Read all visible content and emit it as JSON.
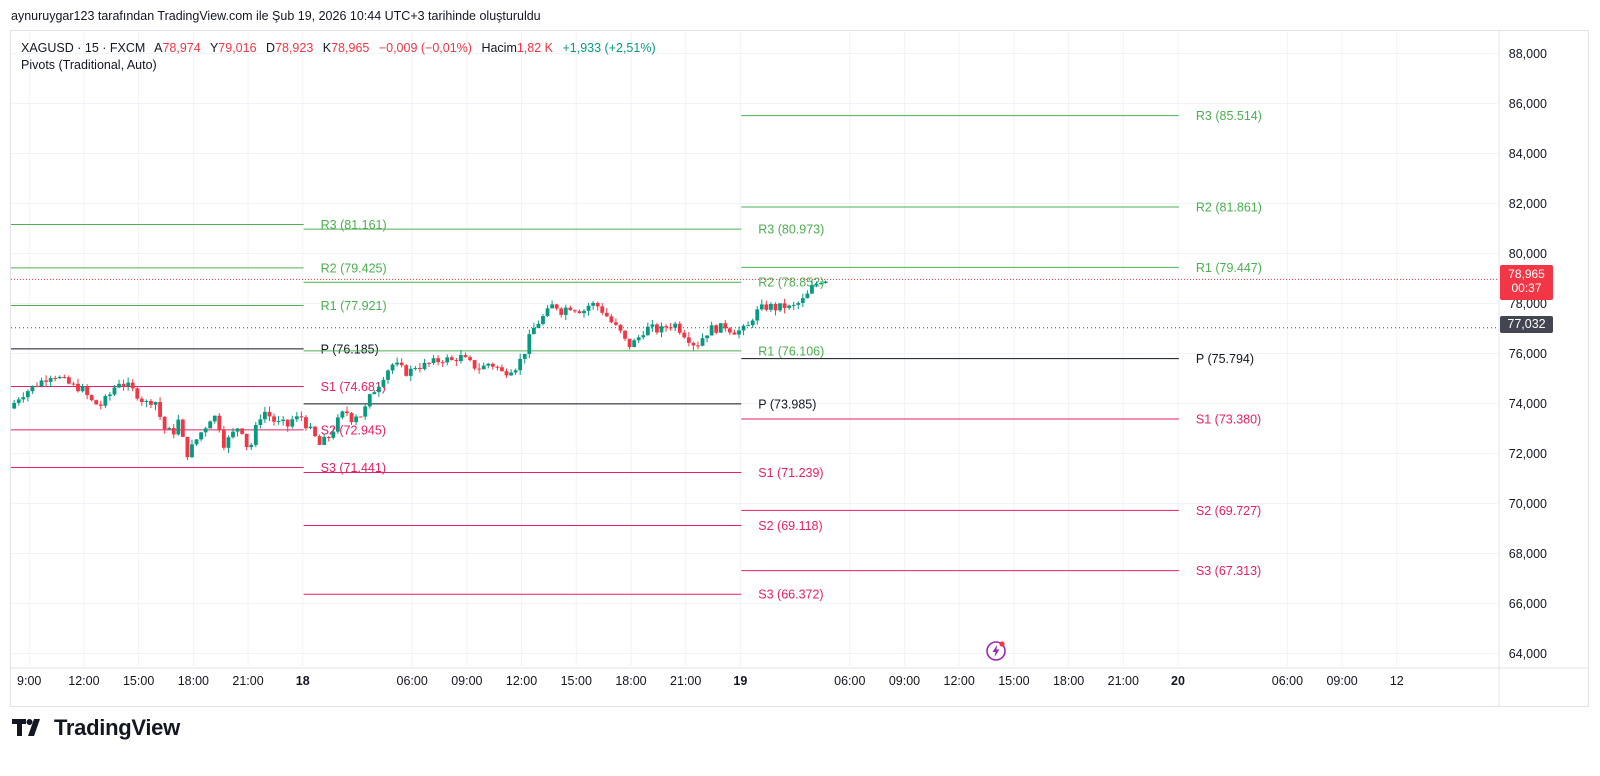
{
  "header": {
    "attribution": "aynuruygar123 tarafından TradingView.com ile Şub 19, 2026 10:44 UTC+3 tarihinde oluşturuldu"
  },
  "legend": {
    "symbol": "XAGUSD · 15 · FXCM",
    "open_label": "A",
    "open_value": "78,974",
    "high_label": "Y",
    "high_value": "79,016",
    "low_label": "D",
    "low_value": "78,923",
    "close_label": "K",
    "close_value": "78,965",
    "change": "−0,009 (−0,01%)",
    "volume_label": "Hacim",
    "volume_value": "1,82 K",
    "volume_change": "+1,933 (+2,51%)",
    "indicator": "Pivots (Traditional, Auto)"
  },
  "price_tags": {
    "last_price": "78,965",
    "countdown": "00:37",
    "crosshair_price": "77,032",
    "partial_tick": "78,000"
  },
  "brand": {
    "name": "TradingView"
  },
  "colors": {
    "up": "#089981",
    "down": "#f23645",
    "resistance": "#4caf50",
    "support": "#e91e63",
    "pivot": "#131722",
    "grid": "#f0f3fa",
    "last": "#f23645",
    "crosshair": "#434651"
  },
  "chart_data": {
    "type": "candlestick",
    "symbol": "XAGUSD",
    "interval": "15",
    "ylim": [
      63.5,
      88.9
    ],
    "y_ticks": [
      "64,000",
      "66,000",
      "68,000",
      "70,000",
      "72,000",
      "74,000",
      "76,000",
      "78,000",
      "80,000",
      "82,000",
      "84,000",
      "86,000",
      "88,000"
    ],
    "y_tick_values": [
      64,
      66,
      68,
      70,
      72,
      74,
      76,
      78,
      80,
      82,
      84,
      86,
      88
    ],
    "x_ticks": [
      {
        "label": "9:00",
        "x": 9
      },
      {
        "label": "12:00",
        "x": 12
      },
      {
        "label": "15:00",
        "x": 15
      },
      {
        "label": "18:00",
        "x": 18
      },
      {
        "label": "21:00",
        "x": 21
      },
      {
        "label": "18",
        "x": 24,
        "bold": true
      },
      {
        "label": "06:00",
        "x": 30
      },
      {
        "label": "09:00",
        "x": 33
      },
      {
        "label": "12:00",
        "x": 36
      },
      {
        "label": "15:00",
        "x": 39
      },
      {
        "label": "18:00",
        "x": 42
      },
      {
        "label": "21:00",
        "x": 45
      },
      {
        "label": "19",
        "x": 48,
        "bold": true
      },
      {
        "label": "06:00",
        "x": 54
      },
      {
        "label": "09:00",
        "x": 57
      },
      {
        "label": "12:00",
        "x": 60
      },
      {
        "label": "15:00",
        "x": 63
      },
      {
        "label": "18:00",
        "x": 66
      },
      {
        "label": "21:00",
        "x": 69
      },
      {
        "label": "20",
        "x": 72,
        "bold": true
      },
      {
        "label": "06:00",
        "x": 78
      },
      {
        "label": "09:00",
        "x": 81
      },
      {
        "label": "12",
        "x": 84
      }
    ],
    "pivot_periods": [
      {
        "x0": 8,
        "x1": 24.05,
        "levels": [
          {
            "name": "R3",
            "value": 81.161,
            "label": "R3 (81.161)",
            "type": "r"
          },
          {
            "name": "R2",
            "value": 79.425,
            "label": "R2 (79.425)",
            "type": "r"
          },
          {
            "name": "R1",
            "value": 77.921,
            "label": "R1 (77.921)",
            "type": "r"
          },
          {
            "name": "P",
            "value": 76.185,
            "label": "P (76.185)",
            "type": "p"
          },
          {
            "name": "S1",
            "value": 74.681,
            "label": "S1 (74.681)",
            "type": "s"
          },
          {
            "name": "S2",
            "value": 72.945,
            "label": "S2 (72.945)",
            "type": "s"
          },
          {
            "name": "S3",
            "value": 71.441,
            "label": "S3 (71.441)",
            "type": "s"
          }
        ]
      },
      {
        "x0": 24.05,
        "x1": 48.05,
        "levels": [
          {
            "name": "R3",
            "value": 80.973,
            "label": "R3 (80.973)",
            "type": "r"
          },
          {
            "name": "R2",
            "value": 78.852,
            "label": "R2 (78.852)",
            "type": "r"
          },
          {
            "name": "R1",
            "value": 76.106,
            "label": "R1 (76.106)",
            "type": "r"
          },
          {
            "name": "P",
            "value": 73.985,
            "label": "P (73.985)",
            "type": "p"
          },
          {
            "name": "S1",
            "value": 71.239,
            "label": "S1 (71.239)",
            "type": "s"
          },
          {
            "name": "S2",
            "value": 69.118,
            "label": "S2 (69.118)",
            "type": "s"
          },
          {
            "name": "S3",
            "value": 66.372,
            "label": "S3 (66.372)",
            "type": "s"
          }
        ]
      },
      {
        "x0": 48.05,
        "x1": 72.05,
        "levels": [
          {
            "name": "R3",
            "value": 85.514,
            "label": "R3 (85.514)",
            "type": "r"
          },
          {
            "name": "R2",
            "value": 81.861,
            "label": "R2 (81.861)",
            "type": "r"
          },
          {
            "name": "R1",
            "value": 79.447,
            "label": "R1 (79.447)",
            "type": "r"
          },
          {
            "name": "P",
            "value": 75.794,
            "label": "P (75.794)",
            "type": "p"
          },
          {
            "name": "S1",
            "value": 73.38,
            "label": "S1 (73.380)",
            "type": "s"
          },
          {
            "name": "S2",
            "value": 69.727,
            "label": "S2 (69.727)",
            "type": "s"
          },
          {
            "name": "S3",
            "value": 67.313,
            "label": "S3 (67.313)",
            "type": "s"
          }
        ]
      }
    ],
    "price_path": [
      [
        8.05,
        73.8
      ],
      [
        8.6,
        74.3
      ],
      [
        9.2,
        74.6
      ],
      [
        9.8,
        74.9
      ],
      [
        10.4,
        75.2
      ],
      [
        11.0,
        74.9
      ],
      [
        11.5,
        74.7
      ],
      [
        12.0,
        74.6
      ],
      [
        12.5,
        74.1
      ],
      [
        13.0,
        73.9
      ],
      [
        13.5,
        74.3
      ],
      [
        14.0,
        74.9
      ],
      [
        14.5,
        74.7
      ],
      [
        15.0,
        74.4
      ],
      [
        15.5,
        74.0
      ],
      [
        16.0,
        74.2
      ],
      [
        16.5,
        73.0
      ],
      [
        17.0,
        72.8
      ],
      [
        17.3,
        73.3
      ],
      [
        17.6,
        72.4
      ],
      [
        17.8,
        72.0
      ],
      [
        18.1,
        72.3
      ],
      [
        18.4,
        72.7
      ],
      [
        18.8,
        73.1
      ],
      [
        19.2,
        73.6
      ],
      [
        19.5,
        73.2
      ],
      [
        19.8,
        72.4
      ],
      [
        20.1,
        72.6
      ],
      [
        20.4,
        72.9
      ],
      [
        20.7,
        73.2
      ],
      [
        21.0,
        72.4
      ],
      [
        21.2,
        72.1
      ],
      [
        21.5,
        72.9
      ],
      [
        21.8,
        73.5
      ],
      [
        22.1,
        73.7
      ],
      [
        22.4,
        73.4
      ],
      [
        22.7,
        73.2
      ],
      [
        23.0,
        73.2
      ],
      [
        23.3,
        73.1
      ],
      [
        23.6,
        73.4
      ],
      [
        23.9,
        73.4
      ],
      [
        24.1,
        73.5
      ],
      [
        24.4,
        73.0
      ],
      [
        24.7,
        72.8
      ],
      [
        25.0,
        72.3
      ],
      [
        25.3,
        72.5
      ],
      [
        25.6,
        72.7
      ],
      [
        25.9,
        73.1
      ],
      [
        26.2,
        73.5
      ],
      [
        26.5,
        73.7
      ],
      [
        26.8,
        73.4
      ],
      [
        27.1,
        73.6
      ],
      [
        27.4,
        73.5
      ],
      [
        27.7,
        74.1
      ],
      [
        28.0,
        74.5
      ],
      [
        28.3,
        74.8
      ],
      [
        28.7,
        75.3
      ],
      [
        29.1,
        75.6
      ],
      [
        29.5,
        75.4
      ],
      [
        29.9,
        75.2
      ],
      [
        30.3,
        75.5
      ],
      [
        30.7,
        75.5
      ],
      [
        31.1,
        75.6
      ],
      [
        31.5,
        75.7
      ],
      [
        31.9,
        75.8
      ],
      [
        32.3,
        75.7
      ],
      [
        32.7,
        75.9
      ],
      [
        33.1,
        75.7
      ],
      [
        33.5,
        75.5
      ],
      [
        33.9,
        75.4
      ],
      [
        34.3,
        75.6
      ],
      [
        34.7,
        75.5
      ],
      [
        35.1,
        75.2
      ],
      [
        35.5,
        75.4
      ],
      [
        35.9,
        75.5
      ],
      [
        36.3,
        76.1
      ],
      [
        36.7,
        76.9
      ],
      [
        37.1,
        77.3
      ],
      [
        37.5,
        77.6
      ],
      [
        37.9,
        78.0
      ],
      [
        38.3,
        77.7
      ],
      [
        38.7,
        77.9
      ],
      [
        39.1,
        77.8
      ],
      [
        39.5,
        77.7
      ],
      [
        39.9,
        78.0
      ],
      [
        40.3,
        77.9
      ],
      [
        40.7,
        77.6
      ],
      [
        41.1,
        77.2
      ],
      [
        41.5,
        76.9
      ],
      [
        41.8,
        76.5
      ],
      [
        42.1,
        76.3
      ],
      [
        42.5,
        76.6
      ],
      [
        42.9,
        77.0
      ],
      [
        43.3,
        77.0
      ],
      [
        43.7,
        76.9
      ],
      [
        44.1,
        77.1
      ],
      [
        44.5,
        77.2
      ],
      [
        44.9,
        76.9
      ],
      [
        45.3,
        76.6
      ],
      [
        45.7,
        76.3
      ],
      [
        46.1,
        76.7
      ],
      [
        46.5,
        77.0
      ],
      [
        46.9,
        77.0
      ],
      [
        47.3,
        77.1
      ],
      [
        47.7,
        76.9
      ],
      [
        48.1,
        76.9
      ],
      [
        48.5,
        77.0
      ],
      [
        48.9,
        77.6
      ],
      [
        49.3,
        77.8
      ],
      [
        49.7,
        77.9
      ],
      [
        50.1,
        77.8
      ],
      [
        50.5,
        77.9
      ],
      [
        50.9,
        77.8
      ],
      [
        51.3,
        78.0
      ],
      [
        51.7,
        78.2
      ],
      [
        52.0,
        78.6
      ],
      [
        52.3,
        78.8
      ],
      [
        52.6,
        78.97
      ]
    ],
    "last_price": 78.965,
    "crosshair_price": 77.032
  }
}
